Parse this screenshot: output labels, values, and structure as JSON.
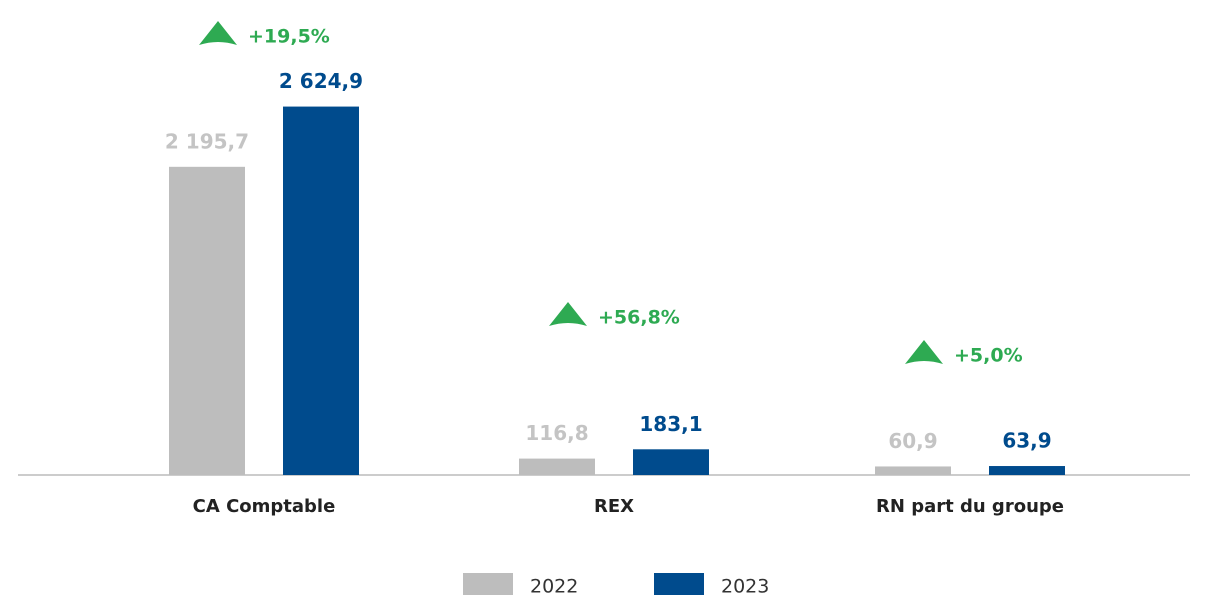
{
  "chart_data": {
    "type": "bar",
    "categories": [
      "CA Comptable",
      "REX",
      "RN part du groupe"
    ],
    "series": [
      {
        "name": "2022",
        "color": "#bdbdbd",
        "label_color": "#c4c4c4",
        "values": [
          2195.7,
          116.8,
          60.9
        ],
        "value_labels": [
          "2 195,7",
          "116,8",
          "60,9"
        ]
      },
      {
        "name": "2023",
        "color": "#004b8d",
        "label_color": "#004b8d",
        "values": [
          2624.9,
          183.1,
          63.9
        ],
        "value_labels": [
          "2 624,9",
          "183,1",
          "63,9"
        ]
      }
    ],
    "annotations": [
      "+19,5%",
      "+56,8%",
      "+5,0%"
    ],
    "ylim": [
      0,
      2800
    ]
  }
}
